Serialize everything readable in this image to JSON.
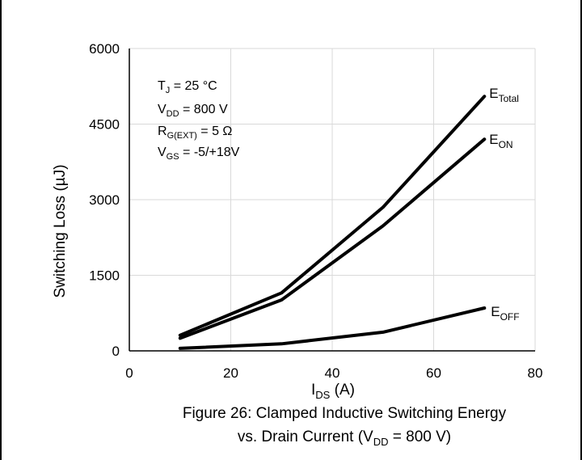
{
  "chart_data": {
    "type": "line",
    "title": "",
    "caption": {
      "line1": "Figure 26: Clamped Inductive Switching Energy",
      "line2_prefix": "vs. Drain Current (V",
      "line2_sub": "DD",
      "line2_suffix": " = 800 V)"
    },
    "xlabel": {
      "main": "I",
      "sub": "DS",
      "suffix": " (A)"
    },
    "ylabel": "Switching Loss (µJ)",
    "xlim": [
      0,
      80
    ],
    "ylim": [
      0,
      6000
    ],
    "xticks": [
      "0",
      "20",
      "40",
      "60",
      "80"
    ],
    "yticks": [
      "0",
      "1500",
      "3000",
      "4500",
      "6000"
    ],
    "grid": true,
    "conditions": [
      {
        "main": "T",
        "sub": "J",
        "rest": " = 25 °C"
      },
      {
        "main": "V",
        "sub": "DD",
        "rest": " = 800 V"
      },
      {
        "main": "R",
        "sub": "G(EXT)",
        "rest": " = 5 Ω"
      },
      {
        "main": "V",
        "sub": "GS",
        "rest": " = -5/+18V"
      }
    ],
    "x": [
      10,
      30,
      50,
      70
    ],
    "series": [
      {
        "name": "E_Total",
        "label_main": "E",
        "label_sub": "Total",
        "values": [
          310,
          1150,
          2850,
          5050
        ]
      },
      {
        "name": "E_ON",
        "label_main": "E",
        "label_sub": "ON",
        "values": [
          250,
          1010,
          2480,
          4200
        ]
      },
      {
        "name": "E_OFF",
        "label_main": "E",
        "label_sub": "OFF",
        "values": [
          50,
          140,
          370,
          850
        ]
      }
    ]
  }
}
